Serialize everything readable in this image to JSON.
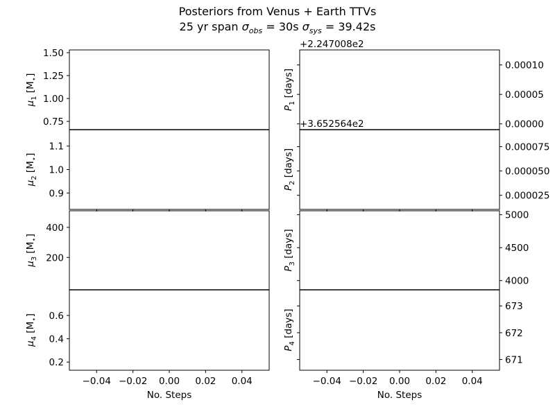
{
  "title": {
    "line1": "Posteriors from Venus + Earth TTVs",
    "line2_prefix": "25 yr span ",
    "sigma": "σ",
    "obs_sub": "obs",
    "obs_value": " = 30s ",
    "sys_sub": "sys",
    "sys_value": " = 39.42s"
  },
  "chart_data": {
    "type": "line",
    "x_ticks": [
      "−0.04",
      "−0.02",
      "0.00",
      "0.02",
      "0.04"
    ],
    "x_values": [
      -0.04,
      -0.02,
      0.0,
      0.02,
      0.04
    ],
    "xlim": [
      -0.055,
      0.055
    ],
    "xlabel": "No. Steps",
    "panels": [
      {
        "col": 0,
        "row": 0,
        "ylabel": {
          "sym": "μ",
          "sub": "1",
          "unit": " [M",
          "unit_sub": "⋆",
          "close": "]"
        },
        "ylim": [
          0.66,
          1.53
        ],
        "yticks": [
          0.75,
          1.0,
          1.25,
          1.5
        ],
        "yticklabels": [
          "0.75",
          "1.00",
          "1.25",
          "1.50"
        ],
        "tick_side": "left",
        "offset": ""
      },
      {
        "col": 0,
        "row": 1,
        "ylabel": {
          "sym": "μ",
          "sub": "2",
          "unit": " [M",
          "unit_sub": "⋆",
          "close": "]"
        },
        "ylim": [
          0.83,
          1.17
        ],
        "yticks": [
          0.9,
          1.0,
          1.1
        ],
        "yticklabels": [
          "0.9",
          "1.0",
          "1.1"
        ],
        "tick_side": "left",
        "offset": ""
      },
      {
        "col": 0,
        "row": 2,
        "ylabel": {
          "sym": "μ",
          "sub": "3",
          "unit": " [M",
          "unit_sub": "⋆",
          "close": "]"
        },
        "ylim": [
          -15,
          510
        ],
        "yticks": [
          200,
          400
        ],
        "yticklabels": [
          "200",
          "400"
        ],
        "tick_side": "left",
        "offset": ""
      },
      {
        "col": 0,
        "row": 3,
        "ylabel": {
          "sym": "μ",
          "sub": "4",
          "unit": " [M",
          "unit_sub": "⋆",
          "close": "]"
        },
        "ylim": [
          0.13,
          0.82
        ],
        "yticks": [
          0.2,
          0.4,
          0.6
        ],
        "yticklabels": [
          "0.2",
          "0.4",
          "0.6"
        ],
        "tick_side": "left",
        "offset": ""
      },
      {
        "col": 1,
        "row": 0,
        "ylabel": {
          "sym": "P",
          "sub": "1",
          "unit": " [days]",
          "unit_sub": "",
          "close": ""
        },
        "ylim": [
          -9.8e-06,
          0.0001255
        ],
        "yticks": [
          0.0,
          5e-05,
          0.0001
        ],
        "yticklabels": [
          "0.00000",
          "0.00005",
          "0.00010"
        ],
        "tick_side": "right",
        "offset": "+2.247008e2"
      },
      {
        "col": 1,
        "row": 1,
        "ylabel": {
          "sym": "P",
          "sub": "2",
          "unit": " [days]",
          "unit_sub": "",
          "close": ""
        },
        "ylim": [
          1.05e-05,
          9.25e-05
        ],
        "yticks": [
          2.5e-05,
          5e-05,
          7.5e-05
        ],
        "yticklabels": [
          "0.000025",
          "0.000050",
          "0.000075"
        ],
        "tick_side": "right",
        "offset": "+3.652564e2"
      },
      {
        "col": 1,
        "row": 2,
        "ylabel": {
          "sym": "P",
          "sub": "3",
          "unit": " [days]",
          "unit_sub": "",
          "close": ""
        },
        "ylim": [
          3860,
          5060
        ],
        "yticks": [
          4000,
          4500,
          5000
        ],
        "yticklabels": [
          "4000",
          "4500",
          "5000"
        ],
        "tick_side": "right",
        "offset": ""
      },
      {
        "col": 1,
        "row": 3,
        "ylabel": {
          "sym": "P",
          "sub": "4",
          "unit": " [days]",
          "unit_sub": "",
          "close": ""
        },
        "ylim": [
          670.6,
          673.6
        ],
        "yticks": [
          671,
          672,
          673
        ],
        "yticklabels": [
          "671",
          "672",
          "673"
        ],
        "tick_side": "right",
        "offset": ""
      }
    ]
  }
}
